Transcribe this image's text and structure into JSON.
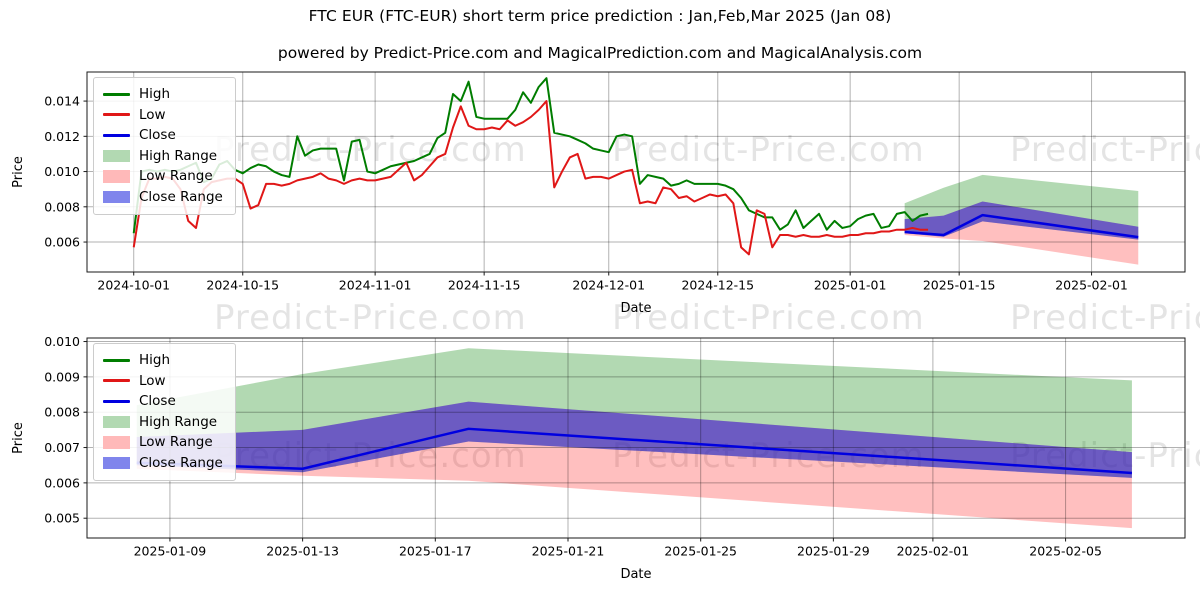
{
  "header": {
    "title": "FTC EUR (FTC-EUR) short term price prediction : Jan,Feb,Mar 2025 (Jan 08)",
    "subtitle": "powered by Predict-Price.com and MagicalPrediction.com and MagicalAnalysis.com"
  },
  "watermark": {
    "text": "Predict-Price.com"
  },
  "colors": {
    "high_line": "#007d00",
    "low_line": "#e01717",
    "close_line": "#0000e0",
    "high_range_fill": "rgba(0,128,0,0.30)",
    "low_range_fill": "rgba(255,0,0,0.25)",
    "close_range_fill": "rgba(20,20,255,0.50)",
    "high_range_swatch": "#b2d9b2",
    "low_range_swatch": "#ffb9b9",
    "close_range_swatch": "#8085ec",
    "grid": "rgba(0,0,0,0.30)",
    "spine": "#1a1a1a"
  },
  "legend": {
    "items": [
      {
        "label": "High",
        "type": "line",
        "color_key": "high_line"
      },
      {
        "label": "Low",
        "type": "line",
        "color_key": "low_line"
      },
      {
        "label": "Close",
        "type": "line",
        "color_key": "close_line"
      },
      {
        "label": "High Range",
        "type": "patch",
        "color_key": "high_range_swatch"
      },
      {
        "label": "Low Range",
        "type": "patch",
        "color_key": "low_range_swatch"
      },
      {
        "label": "Close Range",
        "type": "patch",
        "color_key": "close_range_swatch"
      }
    ]
  },
  "chart_data": [
    {
      "id": "history-and-forecast",
      "type": "line",
      "xlabel": "Date",
      "ylabel": "Price",
      "grid": true,
      "ylim": [
        0.0043,
        0.01565
      ],
      "yticks": [
        {
          "value": 0.006,
          "label": "0.006"
        },
        {
          "value": 0.008,
          "label": "0.008"
        },
        {
          "value": 0.01,
          "label": "0.010"
        },
        {
          "value": 0.012,
          "label": "0.012"
        },
        {
          "value": 0.014,
          "label": "0.014"
        }
      ],
      "xlim_days": [
        -6,
        135
      ],
      "xticks": [
        {
          "day": 0,
          "label": "2024-10-01"
        },
        {
          "day": 14,
          "label": "2024-10-15"
        },
        {
          "day": 31,
          "label": "2024-11-01"
        },
        {
          "day": 45,
          "label": "2024-11-15"
        },
        {
          "day": 61,
          "label": "2024-12-01"
        },
        {
          "day": 75,
          "label": "2024-12-15"
        },
        {
          "day": 92,
          "label": "2025-01-01"
        },
        {
          "day": 106,
          "label": "2025-01-15"
        },
        {
          "day": 123,
          "label": "2025-02-01"
        }
      ],
      "series_start_date": "2024-10-01",
      "series_frequency": "daily",
      "high": [
        0.0065,
        0.01,
        0.0101,
        0.01,
        0.0101,
        0.01,
        0.0101,
        0.0103,
        0.0105,
        0.0094,
        0.0096,
        0.0104,
        0.0106,
        0.0101,
        0.0099,
        0.0102,
        0.0104,
        0.0103,
        0.01,
        0.0098,
        0.0097,
        0.012,
        0.0109,
        0.0112,
        0.0113,
        0.0113,
        0.0113,
        0.0095,
        0.0117,
        0.0118,
        0.01,
        0.0099,
        0.0101,
        0.0103,
        0.0104,
        0.0105,
        0.0106,
        0.0108,
        0.011,
        0.0119,
        0.0122,
        0.0144,
        0.014,
        0.0151,
        0.0131,
        0.013,
        0.013,
        0.013,
        0.013,
        0.0135,
        0.0145,
        0.0139,
        0.0148,
        0.0153,
        0.0122,
        0.0121,
        0.012,
        0.0118,
        0.0116,
        0.0113,
        0.0112,
        0.0111,
        0.012,
        0.0121,
        0.012,
        0.0093,
        0.0098,
        0.0097,
        0.0096,
        0.0092,
        0.0093,
        0.0095,
        0.0093,
        0.0093,
        0.0093,
        0.0093,
        0.0092,
        0.009,
        0.0085,
        0.0078,
        0.0076,
        0.0074,
        0.0074,
        0.0067,
        0.007,
        0.0078,
        0.0068,
        0.0072,
        0.0076,
        0.0067,
        0.0072,
        0.0068,
        0.0069,
        0.0073,
        0.0075,
        0.0076,
        0.0068,
        0.0069,
        0.0076,
        0.0077,
        0.0072,
        0.0075,
        0.0076
      ],
      "low": [
        0.0057,
        0.0085,
        0.0096,
        0.0096,
        0.0097,
        0.0096,
        0.009,
        0.0072,
        0.0068,
        0.009,
        0.0094,
        0.0095,
        0.0096,
        0.0096,
        0.0093,
        0.0079,
        0.0081,
        0.0093,
        0.0093,
        0.0092,
        0.0093,
        0.0095,
        0.0096,
        0.0097,
        0.0099,
        0.0096,
        0.0095,
        0.0093,
        0.0095,
        0.0096,
        0.0095,
        0.0095,
        0.0096,
        0.0097,
        0.0101,
        0.0105,
        0.0095,
        0.0098,
        0.0103,
        0.0108,
        0.011,
        0.0125,
        0.0137,
        0.0126,
        0.0124,
        0.0124,
        0.0125,
        0.0124,
        0.0129,
        0.0126,
        0.0128,
        0.0131,
        0.0135,
        0.014,
        0.0091,
        0.01,
        0.0108,
        0.011,
        0.0096,
        0.0097,
        0.0097,
        0.0096,
        0.0098,
        0.01,
        0.0101,
        0.0082,
        0.0083,
        0.0082,
        0.0091,
        0.009,
        0.0085,
        0.0086,
        0.0083,
        0.0085,
        0.0087,
        0.0086,
        0.0087,
        0.0082,
        0.0057,
        0.0053,
        0.0078,
        0.0076,
        0.0057,
        0.0064,
        0.0064,
        0.0063,
        0.0064,
        0.0063,
        0.0063,
        0.0064,
        0.0063,
        0.0063,
        0.0064,
        0.0064,
        0.0065,
        0.0065,
        0.0066,
        0.0066,
        0.0067,
        0.0067,
        0.0068,
        0.0067,
        0.0067
      ],
      "prediction": {
        "dates": [
          "2025-01-08",
          "2025-01-13",
          "2025-01-18",
          "2025-02-07"
        ],
        "days": [
          99,
          104,
          109,
          129
        ],
        "close": [
          0.00657,
          0.0064,
          0.00753,
          0.00628
        ],
        "close_upper": [
          0.0073,
          0.0075,
          0.0083,
          0.00687
        ],
        "close_lower": [
          0.0065,
          0.0063,
          0.00717,
          0.00614
        ],
        "high_upper": [
          0.0082,
          0.00908,
          0.00981,
          0.0089
        ],
        "low_lower": [
          0.0064,
          0.0062,
          0.00606,
          0.00472
        ]
      }
    },
    {
      "id": "forecast-detail",
      "type": "line",
      "xlabel": "Date",
      "ylabel": "Price",
      "grid": true,
      "ylim": [
        0.00444,
        0.0101
      ],
      "yticks": [
        {
          "value": 0.005,
          "label": "0.005"
        },
        {
          "value": 0.006,
          "label": "0.006"
        },
        {
          "value": 0.007,
          "label": "0.007"
        },
        {
          "value": 0.008,
          "label": "0.008"
        },
        {
          "value": 0.009,
          "label": "0.009"
        },
        {
          "value": 0.01,
          "label": "0.010"
        }
      ],
      "xlim_days": [
        97.5,
        130.6
      ],
      "xticks": [
        {
          "day": 100,
          "label": "2025-01-09"
        },
        {
          "day": 104,
          "label": "2025-01-13"
        },
        {
          "day": 108,
          "label": "2025-01-17"
        },
        {
          "day": 112,
          "label": "2025-01-21"
        },
        {
          "day": 116,
          "label": "2025-01-25"
        },
        {
          "day": 120,
          "label": "2025-01-29"
        },
        {
          "day": 123,
          "label": "2025-02-01"
        },
        {
          "day": 127,
          "label": "2025-02-05"
        }
      ],
      "prediction": {
        "dates": [
          "2025-01-08",
          "2025-01-13",
          "2025-01-18",
          "2025-02-07"
        ],
        "days": [
          99,
          104,
          109,
          129
        ],
        "close": [
          0.00657,
          0.0064,
          0.00753,
          0.00628
        ],
        "close_upper": [
          0.0073,
          0.0075,
          0.0083,
          0.00687
        ],
        "close_lower": [
          0.0065,
          0.0063,
          0.00717,
          0.00614
        ],
        "high_upper": [
          0.0082,
          0.00908,
          0.00981,
          0.0089
        ],
        "low_lower": [
          0.0064,
          0.0062,
          0.00606,
          0.00472
        ]
      }
    }
  ]
}
